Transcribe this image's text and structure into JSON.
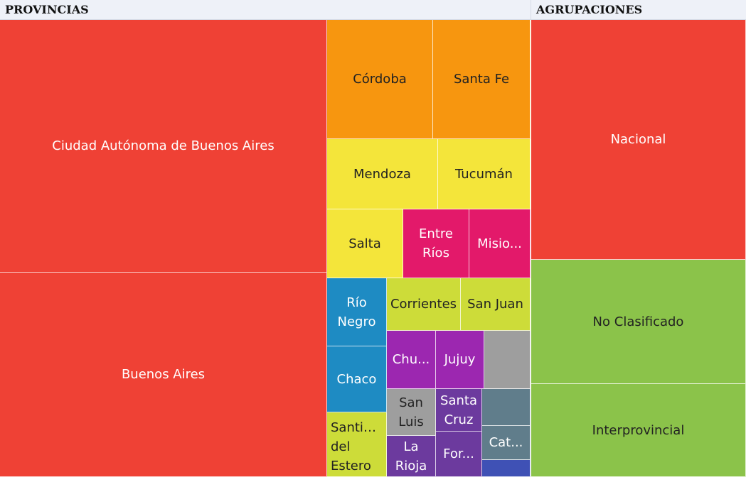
{
  "panels": {
    "left_title": "PROVINCIAS",
    "right_title": "AGRUPACIONES"
  },
  "chart_data": [
    {
      "type": "treemap",
      "title": "PROVINCIAS",
      "tiles": [
        {
          "label": "Ciudad Autónoma de Buenos Aires",
          "color": "#ef4135",
          "text": "#ffffff"
        },
        {
          "label": "Buenos Aires",
          "color": "#ef4135",
          "text": "#ffffff"
        },
        {
          "label": "Córdoba",
          "color": "#f7960f",
          "text": "#222222"
        },
        {
          "label": "Santa Fe",
          "color": "#f7960f",
          "text": "#222222"
        },
        {
          "label": "Mendoza",
          "color": "#f4e53a",
          "text": "#222222"
        },
        {
          "label": "Tucumán",
          "color": "#f4e53a",
          "text": "#222222"
        },
        {
          "label": "Salta",
          "color": "#f4e53a",
          "text": "#222222"
        },
        {
          "label": "Entre Ríos",
          "color": "#e3196a",
          "text": "#ffffff"
        },
        {
          "label": "Misio...",
          "color": "#e3196a",
          "text": "#ffffff"
        },
        {
          "label": "Río Negro",
          "color": "#1e8bc3",
          "text": "#ffffff"
        },
        {
          "label": "Corrientes",
          "color": "#cddc39",
          "text": "#222222"
        },
        {
          "label": "San Juan",
          "color": "#cddc39",
          "text": "#222222"
        },
        {
          "label": "Chaco",
          "color": "#1e8bc3",
          "text": "#ffffff"
        },
        {
          "label": "Chu...",
          "color": "#9c27b0",
          "text": "#ffffff"
        },
        {
          "label": "Jujuy",
          "color": "#9c27b0",
          "text": "#ffffff"
        },
        {
          "label": "",
          "color": "#9e9e9e",
          "text": "#ffffff"
        },
        {
          "label": "San Luis",
          "color": "#9e9e9e",
          "text": "#222222"
        },
        {
          "label": "Santa Cruz",
          "color": "#6c3a9e",
          "text": "#ffffff"
        },
        {
          "label": "",
          "color": "#607d8b",
          "text": "#ffffff"
        },
        {
          "label": "Santiago del Estero",
          "color": "#cddc39",
          "text": "#222222"
        },
        {
          "label": "La Rioja",
          "color": "#6c3a9e",
          "text": "#ffffff"
        },
        {
          "label": "For...",
          "color": "#6c3a9e",
          "text": "#ffffff"
        },
        {
          "label": "Cat...",
          "color": "#607d8b",
          "text": "#ffffff"
        },
        {
          "label": "",
          "color": "#3f51b5",
          "text": "#ffffff"
        }
      ]
    },
    {
      "type": "treemap",
      "title": "AGRUPACIONES",
      "tiles": [
        {
          "label": "Nacional",
          "color": "#ef4135",
          "text": "#ffffff"
        },
        {
          "label": "No Clasificado",
          "color": "#8bc34a",
          "text": "#222222"
        },
        {
          "label": "Interprovincial",
          "color": "#8bc34a",
          "text": "#222222"
        }
      ]
    }
  ]
}
